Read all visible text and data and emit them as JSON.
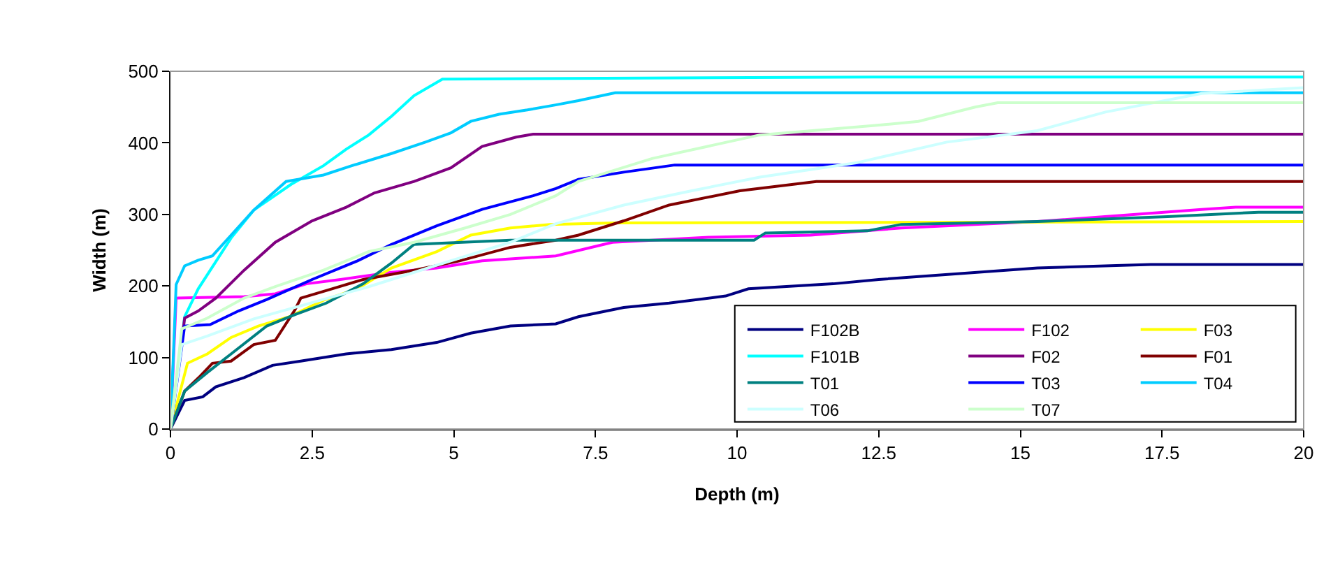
{
  "chart_data": {
    "type": "line",
    "xlabel": "Depth (m)",
    "ylabel": "Width (m)",
    "xlim": [
      0,
      20
    ],
    "xticks": [
      0,
      2.5,
      5,
      7.5,
      10,
      12.5,
      15,
      17.5,
      20
    ],
    "ylim": [
      0,
      500
    ],
    "yticks": [
      0,
      100,
      200,
      300,
      400,
      500
    ],
    "grid": false,
    "legend": "bottom right",
    "marker": "none",
    "line_style": "solid",
    "series": [
      {
        "name": "F102B",
        "color": "#000080",
        "x": [
          0,
          0.25,
          0.57,
          0.8,
          1.3,
          1.8,
          2.3,
          3.1,
          3.9,
          4.7,
          5.3,
          6.0,
          6.8,
          7.2,
          8.0,
          8.8,
          9.8,
          10.2,
          11.7,
          12.5,
          15.3,
          17.3,
          20
        ],
        "values": [
          0,
          40,
          45,
          59,
          72,
          89,
          95,
          105,
          111,
          121,
          134,
          144,
          147,
          157,
          170,
          176,
          186,
          196,
          203,
          209,
          225,
          230,
          230
        ]
      },
      {
        "name": "F102",
        "color": "#ff00ff",
        "x": [
          0,
          0.1,
          1.3,
          1.85,
          2.4,
          3.0,
          3.9,
          4.7,
          5.5,
          6.8,
          7.8,
          9.5,
          11.3,
          12.9,
          15.3,
          18.2,
          18.8,
          20
        ],
        "values": [
          0,
          183,
          185,
          189,
          203,
          209,
          219,
          225,
          235,
          242,
          261,
          268,
          271,
          281,
          290,
          307,
          310,
          310
        ]
      },
      {
        "name": "F03",
        "color": "#ffff00",
        "x": [
          0,
          0.3,
          0.65,
          1.07,
          1.55,
          2.1,
          2.7,
          3.3,
          3.9,
          4.7,
          5.3,
          6.0,
          6.7,
          7.85,
          20
        ],
        "values": [
          0,
          92,
          105,
          128,
          144,
          157,
          180,
          196,
          225,
          248,
          271,
          281,
          286,
          288,
          290
        ]
      },
      {
        "name": "F101B",
        "color": "#00ffff",
        "x": [
          0,
          0.25,
          0.49,
          1.07,
          1.47,
          2.13,
          2.7,
          3.1,
          3.5,
          3.9,
          4.3,
          4.8,
          12.4,
          20
        ],
        "values": [
          0,
          157,
          196,
          267,
          306,
          342,
          368,
          391,
          411,
          437,
          466,
          489,
          492,
          492
        ]
      },
      {
        "name": "F02",
        "color": "#800080",
        "x": [
          0,
          0.25,
          0.49,
          0.8,
          1.3,
          1.85,
          2.5,
          3.1,
          3.6,
          4.3,
          4.95,
          5.5,
          6.1,
          6.4,
          20
        ],
        "values": [
          0,
          155,
          165,
          183,
          222,
          261,
          291,
          310,
          330,
          346,
          365,
          395,
          408,
          412,
          412
        ]
      },
      {
        "name": "F01",
        "color": "#800000",
        "x": [
          0,
          0.25,
          0.5,
          0.74,
          1.07,
          1.47,
          1.85,
          2.2,
          2.3,
          2.85,
          3.4,
          4.3,
          5.1,
          6.0,
          6.8,
          7.2,
          8.0,
          8.8,
          10.05,
          11.4,
          20
        ],
        "values": [
          0,
          53,
          72,
          92,
          95,
          118,
          124,
          167,
          183,
          196,
          209,
          222,
          235,
          254,
          264,
          271,
          291,
          313,
          333,
          346,
          346
        ]
      },
      {
        "name": "T01",
        "color": "#008080",
        "x": [
          0,
          0.25,
          0.65,
          1.07,
          1.7,
          2.2,
          2.75,
          3.4,
          3.9,
          4.3,
          6.0,
          10.3,
          10.5,
          12.3,
          12.9,
          15.3,
          17.6,
          19.2,
          20
        ],
        "values": [
          0,
          53,
          79,
          105,
          144,
          160,
          176,
          203,
          232,
          258,
          264,
          264,
          274,
          277,
          286,
          290,
          297,
          303,
          303
        ]
      },
      {
        "name": "T03",
        "color": "#0000ff",
        "x": [
          0,
          0.25,
          0.7,
          1.2,
          1.7,
          2.5,
          3.3,
          3.9,
          4.7,
          5.5,
          6.4,
          6.8,
          7.2,
          8.0,
          8.9,
          20
        ],
        "values": [
          0,
          144,
          146,
          165,
          181,
          209,
          235,
          258,
          284,
          307,
          326,
          336,
          349,
          359,
          369,
          369
        ]
      },
      {
        "name": "T04",
        "color": "#00ccff",
        "x": [
          0,
          0.1,
          0.25,
          0.49,
          0.74,
          1.07,
          1.47,
          2.04,
          2.7,
          3.2,
          3.9,
          4.5,
          4.95,
          5.3,
          5.8,
          6.3,
          6.8,
          7.2,
          7.85,
          20
        ],
        "values": [
          0,
          202,
          228,
          236,
          242,
          271,
          306,
          346,
          355,
          368,
          385,
          401,
          414,
          430,
          440,
          446,
          453,
          459,
          470,
          470
        ]
      },
      {
        "name": "T06",
        "color": "#ccffff",
        "x": [
          0,
          0.2,
          0.65,
          1.47,
          2.2,
          3.5,
          4.7,
          6.0,
          6.8,
          8.0,
          9.2,
          10.4,
          12.1,
          13.7,
          15.3,
          16.5,
          18.2,
          20
        ],
        "values": [
          0,
          118,
          130,
          154,
          170,
          199,
          229,
          261,
          287,
          313,
          333,
          352,
          372,
          401,
          417,
          443,
          469,
          477
        ]
      },
      {
        "name": "T07",
        "color": "#ccffcc",
        "x": [
          0,
          0.2,
          0.65,
          1.3,
          1.85,
          2.7,
          3.5,
          4.3,
          5.2,
          6.0,
          6.8,
          7.2,
          8.5,
          10.4,
          12.4,
          13.2,
          14.2,
          14.6,
          20
        ],
        "values": [
          0,
          140,
          155,
          183,
          199,
          222,
          248,
          261,
          281,
          300,
          326,
          346,
          378,
          411,
          424,
          430,
          450,
          456,
          456
        ]
      }
    ]
  }
}
